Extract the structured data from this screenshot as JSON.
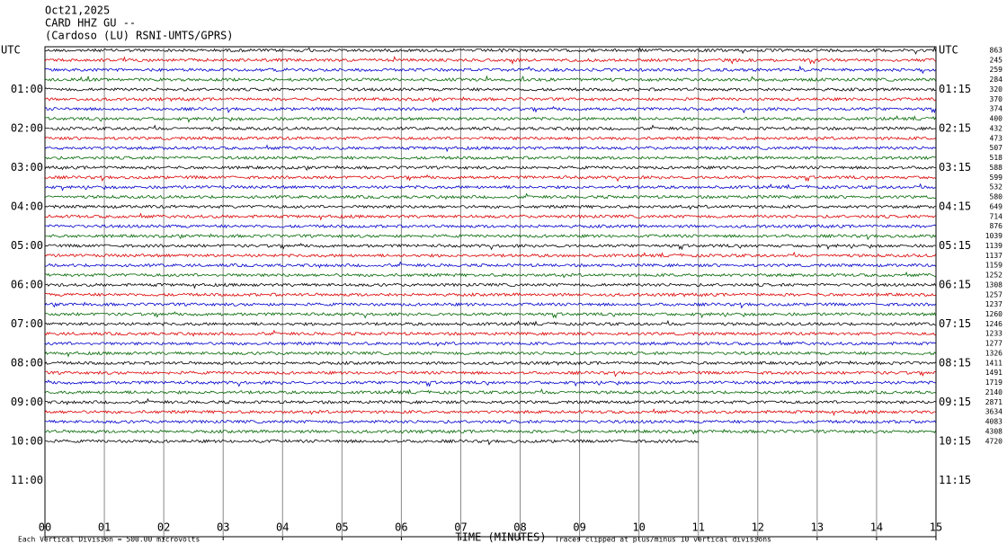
{
  "header": {
    "date": "Oct21,2025",
    "station": "CARD HHZ GU --",
    "site": "(Cardoso (LU) RSNI-UMTS/GPRS)"
  },
  "left_labels": [
    "UTC",
    "01:00",
    "02:00",
    "03:00",
    "04:00",
    "05:00",
    "06:00",
    "07:00",
    "08:00",
    "09:00",
    "10:00",
    "11:00"
  ],
  "right_labels": [
    "UTC",
    "01:15",
    "02:15",
    "03:15",
    "04:15",
    "05:15",
    "06:15",
    "07:15",
    "08:15",
    "09:15",
    "10:15",
    "11:15"
  ],
  "row_values": [
    863,
    245,
    259,
    284,
    320,
    370,
    374,
    400,
    432,
    473,
    507,
    518,
    588,
    599,
    532,
    580,
    649,
    714,
    876,
    1039,
    1139,
    1137,
    1159,
    1252,
    1308,
    1257,
    1237,
    1260,
    1246,
    1233,
    1277,
    1326,
    1411,
    1491,
    1719,
    2140,
    2871,
    3634,
    4083,
    4308,
    4720
  ],
  "x_ticks": [
    "00",
    "01",
    "02",
    "03",
    "04",
    "05",
    "06",
    "07",
    "08",
    "09",
    "10",
    "11",
    "12",
    "13",
    "14",
    "15"
  ],
  "trace_colors": [
    "#000000",
    "#dd0000",
    "#0000cc",
    "#006600"
  ],
  "footer": {
    "scale": "Each Vertical Division =  500.00 microvolts",
    "x_label": "TIME (MINUTES)",
    "clip": "Traces clipped at plus/minus 10 vertical divisions"
  }
}
